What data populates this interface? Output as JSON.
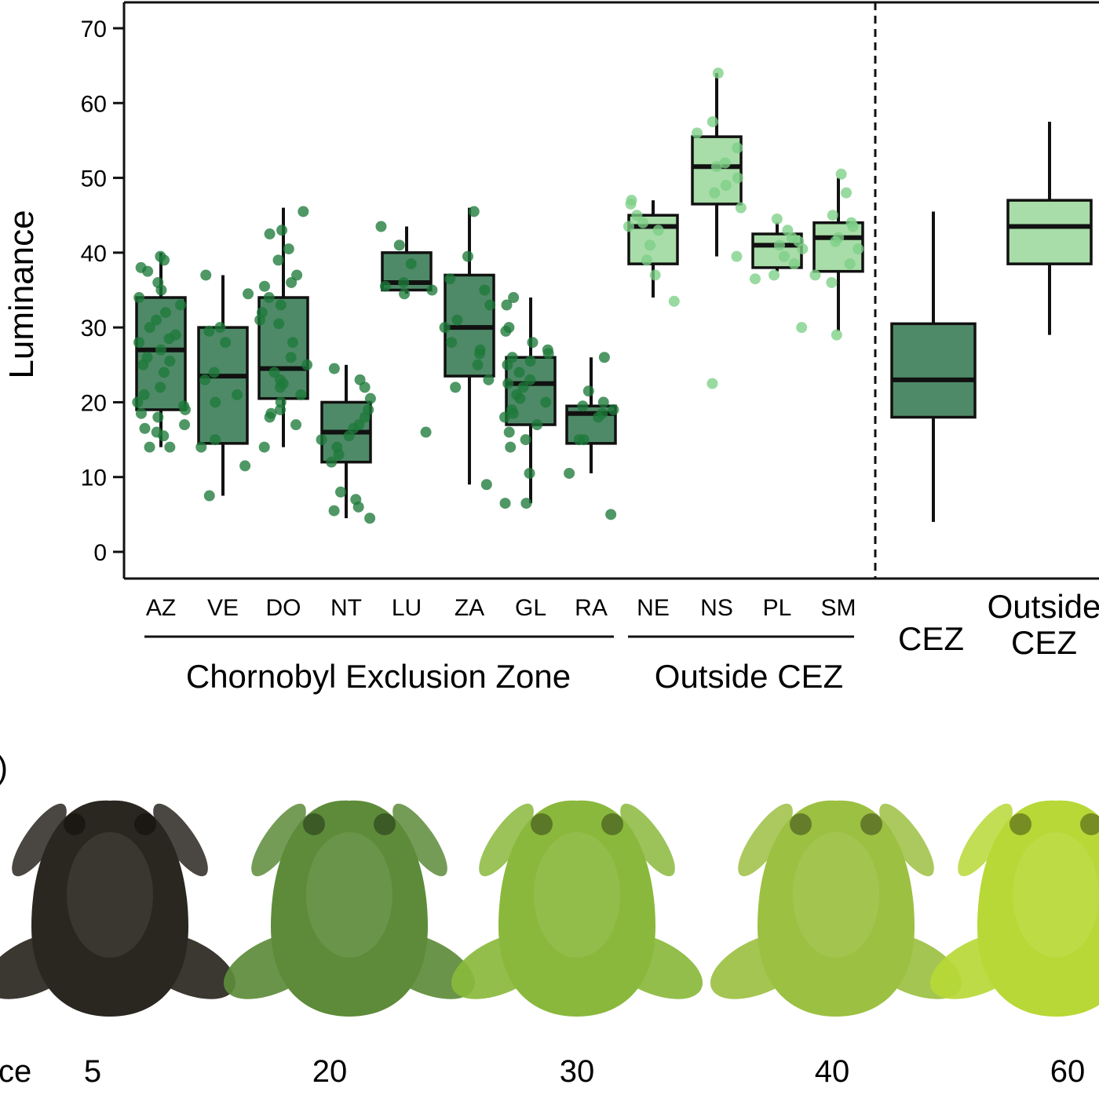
{
  "chart_data": [
    {
      "type": "box",
      "panel": "per-population",
      "ylabel": "Luminance",
      "ylim": [
        -3,
        74
      ],
      "yticks": [
        0,
        10,
        20,
        30,
        40,
        50,
        60,
        70
      ],
      "grid": false,
      "groups": [
        {
          "name": "Chornobyl Exclusion Zone",
          "categories": [
            "AZ",
            "VE",
            "DO",
            "NT",
            "LU",
            "ZA",
            "GL",
            "RA"
          ],
          "color": "#4f8a68",
          "point_color": "#1e7a3a"
        },
        {
          "name": "Outside CEZ",
          "categories": [
            "NE",
            "NS",
            "PL",
            "SM"
          ],
          "color": "#a8dca8",
          "point_color": "#7ccf86"
        }
      ],
      "boxes": [
        {
          "category": "AZ",
          "group": "Chornobyl Exclusion Zone",
          "whisker_low": 14,
          "q1": 19,
          "median": 27,
          "q3": 34,
          "whisker_high": 40,
          "points": [
            39.5,
            39,
            38,
            37.5,
            36,
            35,
            34,
            33,
            32,
            31,
            30,
            29,
            28.5,
            28,
            27,
            26,
            25.5,
            25,
            24,
            22,
            21,
            20,
            19.5,
            19,
            18.5,
            18,
            17,
            16.5,
            16,
            15.5,
            14,
            14
          ]
        },
        {
          "category": "VE",
          "group": "Chornobyl Exclusion Zone",
          "whisker_low": 7.5,
          "q1": 14.5,
          "median": 23.5,
          "q3": 30,
          "whisker_high": 37,
          "points": [
            37,
            34.5,
            30,
            29.5,
            28,
            24,
            23,
            21,
            20,
            15,
            14,
            11.5,
            7.5
          ]
        },
        {
          "category": "DO",
          "group": "Chornobyl Exclusion Zone",
          "whisker_low": 14,
          "q1": 20.5,
          "median": 24.5,
          "q3": 34,
          "whisker_high": 46,
          "points": [
            45.5,
            43,
            42.5,
            40.5,
            39,
            37,
            36,
            35.5,
            34,
            33,
            32,
            31,
            30.5,
            28,
            26,
            25,
            24,
            23,
            22.5,
            22,
            21,
            20,
            19,
            18.5,
            18,
            17,
            14
          ]
        },
        {
          "category": "NT",
          "group": "Chornobyl Exclusion Zone",
          "whisker_low": 4.5,
          "q1": 12,
          "median": 16,
          "q3": 20,
          "whisker_high": 25,
          "points": [
            24.5,
            23,
            22,
            20.5,
            19,
            18,
            17,
            16.5,
            15.5,
            15,
            14,
            13,
            12,
            8,
            7,
            6,
            5.5,
            4.5
          ]
        },
        {
          "category": "LU",
          "group": "Chornobyl Exclusion Zone",
          "whisker_low": 34.5,
          "q1": 35,
          "median": 36,
          "q3": 40,
          "whisker_high": 43.5,
          "points": [
            43.5,
            41,
            38.5,
            36,
            35.5,
            35,
            34.5,
            16
          ]
        },
        {
          "category": "ZA",
          "group": "Chornobyl Exclusion Zone",
          "whisker_low": 9,
          "q1": 23.5,
          "median": 30,
          "q3": 37,
          "whisker_high": 46,
          "points": [
            45.5,
            39.5,
            36.5,
            35,
            33,
            31,
            30,
            28,
            27,
            26.5,
            25,
            23,
            22,
            9
          ]
        },
        {
          "category": "GL",
          "group": "Chornobyl Exclusion Zone",
          "whisker_low": 6.5,
          "q1": 17,
          "median": 22.5,
          "q3": 26,
          "whisker_high": 34,
          "points": [
            34,
            33,
            30,
            29.5,
            28,
            27,
            26.5,
            26,
            25.5,
            25,
            24,
            23,
            22.5,
            22,
            21,
            20.5,
            20,
            19,
            18.5,
            18,
            17,
            16,
            15,
            14,
            10.5,
            6.5,
            6.5
          ]
        },
        {
          "category": "RA",
          "group": "Chornobyl Exclusion Zone",
          "whisker_low": 10.5,
          "q1": 14.5,
          "median": 18.5,
          "q3": 19.5,
          "whisker_high": 26,
          "points": [
            26,
            21.5,
            20,
            19.5,
            19,
            18.5,
            18,
            15,
            15,
            10.5,
            5
          ]
        },
        {
          "category": "NE",
          "group": "Outside CEZ",
          "whisker_low": 34,
          "q1": 38.5,
          "median": 43.5,
          "q3": 45,
          "whisker_high": 47,
          "points": [
            47,
            46.5,
            45,
            44,
            43.5,
            43,
            41,
            39,
            37,
            33.5
          ]
        },
        {
          "category": "NS",
          "group": "Outside CEZ",
          "whisker_low": 39.5,
          "q1": 46.5,
          "median": 51.5,
          "q3": 55.5,
          "whisker_high": 64,
          "points": [
            64,
            57.5,
            56,
            54,
            52,
            51.5,
            50,
            49,
            48,
            46,
            39.5,
            22.5
          ]
        },
        {
          "category": "PL",
          "group": "Outside CEZ",
          "whisker_low": 37.5,
          "q1": 38,
          "median": 41,
          "q3": 42.5,
          "whisker_high": 44,
          "points": [
            44.5,
            43,
            42,
            41.5,
            41,
            40.5,
            39.5,
            38.5,
            37,
            36.5,
            30
          ]
        },
        {
          "category": "SM",
          "group": "Outside CEZ",
          "whisker_low": 29.5,
          "q1": 37.5,
          "median": 42,
          "q3": 44,
          "whisker_high": 50,
          "points": [
            50.5,
            48,
            45,
            44,
            43.5,
            42,
            41.5,
            40.5,
            38.5,
            37,
            36,
            29
          ]
        }
      ]
    },
    {
      "type": "box",
      "panel": "pooled",
      "ylim": [
        -3,
        74
      ],
      "categories": [
        "CEZ",
        "Outside\nCEZ"
      ],
      "boxes": [
        {
          "category": "CEZ",
          "whisker_low": 4,
          "q1": 18,
          "median": 23,
          "q3": 30.5,
          "whisker_high": 45.5,
          "color": "#4f8a68"
        },
        {
          "category": "Outside CEZ",
          "whisker_low": 29,
          "q1": 38.5,
          "median": 43.5,
          "q3": 47,
          "whisker_high": 57.5,
          "color": "#a8dca8"
        }
      ]
    }
  ],
  "frog_panel": {
    "panel_letter_fragment": ")",
    "row_label_fragment": "ce",
    "frogs": [
      {
        "luminance": "5",
        "color": "#2a2620"
      },
      {
        "luminance": "20",
        "color": "#5d8b3a"
      },
      {
        "luminance": "30",
        "color": "#8ab83c"
      },
      {
        "luminance": "40",
        "color": "#9cc042"
      },
      {
        "luminance": "60",
        "color": "#b7d836"
      }
    ]
  }
}
